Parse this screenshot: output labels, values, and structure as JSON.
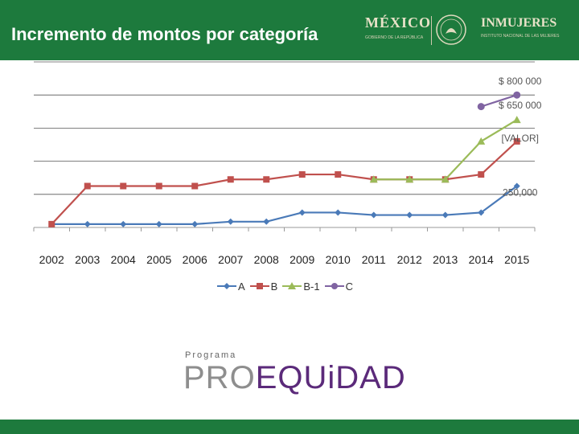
{
  "header": {
    "title": "Incremento de montos por categoría",
    "logo_mexico": "MÉXICO",
    "logo_mexico_sub": "GOBIERNO DE LA REPÚBLICA",
    "logo_inmujeres": "INMUJERES",
    "logo_inmujeres_sub": "INSTITUTO NACIONAL DE LAS MUJERES"
  },
  "branding": {
    "programa": "Programa",
    "pro": "PRO",
    "equidad": "EQUiDAD"
  },
  "colors": {
    "header_green": "#1d7a3d",
    "series_A": "#4a7ab8",
    "series_B": "#c0504d",
    "series_B1": "#9bbb59",
    "series_C": "#8064a2"
  },
  "chart_data": {
    "type": "line",
    "categories": [
      "2002",
      "2003",
      "2004",
      "2005",
      "2006",
      "2007",
      "2008",
      "2009",
      "2010",
      "2011",
      "2012",
      "2013",
      "2014",
      "2015"
    ],
    "series": [
      {
        "name": "A",
        "values": [
          20000,
          20000,
          20000,
          20000,
          20000,
          35000,
          35000,
          90000,
          90000,
          75000,
          75000,
          75000,
          90000,
          250000
        ]
      },
      {
        "name": "B",
        "values": [
          20000,
          250000,
          250000,
          250000,
          250000,
          290000,
          290000,
          320000,
          320000,
          290000,
          290000,
          290000,
          320000,
          520000
        ]
      },
      {
        "name": "B-1",
        "values": [
          null,
          null,
          null,
          null,
          null,
          null,
          null,
          null,
          null,
          290000,
          290000,
          290000,
          520000,
          650000
        ]
      },
      {
        "name": "C",
        "values": [
          null,
          null,
          null,
          null,
          null,
          null,
          null,
          null,
          null,
          null,
          null,
          null,
          730000,
          800000
        ]
      }
    ],
    "data_labels": [
      {
        "series": "C",
        "category": "2015",
        "text": "$ 800 000"
      },
      {
        "series": "B-1",
        "category": "2015",
        "text": "$ 650 000"
      },
      {
        "series": "B",
        "category": "2015",
        "text": "[VALOR]"
      },
      {
        "series": "A",
        "category": "2015",
        "text": "250,000"
      }
    ],
    "ylim": [
      0,
      1000000
    ],
    "grid": true,
    "legend": "bottom",
    "title": "",
    "xlabel": "",
    "ylabel": ""
  }
}
